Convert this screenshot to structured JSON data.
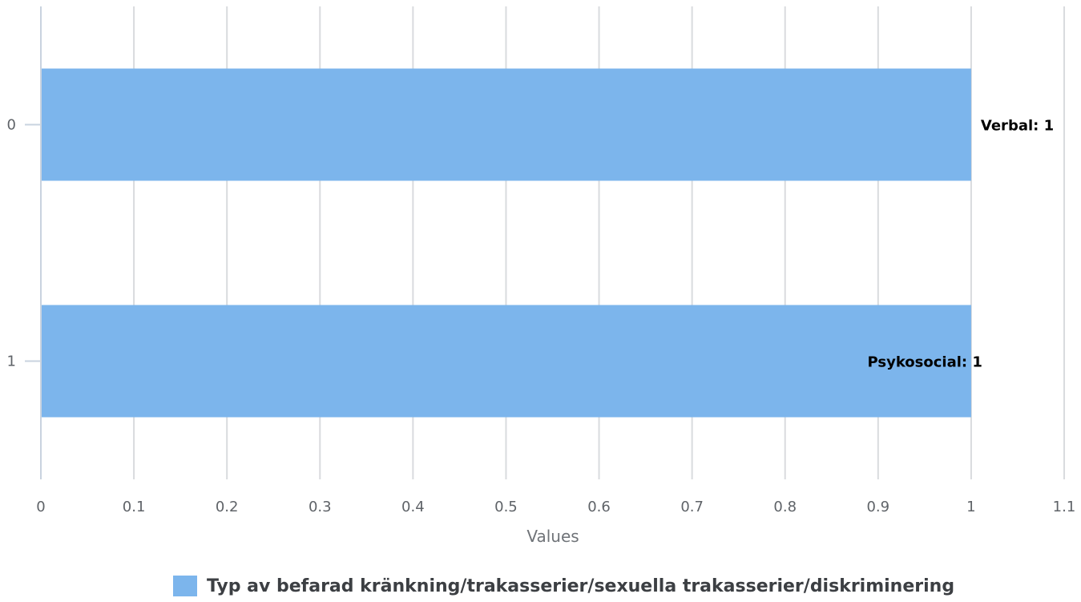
{
  "chart_data": {
    "type": "bar",
    "orientation": "horizontal",
    "categories": [
      "0",
      "1"
    ],
    "series": [
      {
        "name": "Typ av befarad kränkning/trakasserier/sexuella trakasserier/diskriminering",
        "values": [
          1,
          1
        ],
        "color": "#7cb5ec",
        "data_labels": [
          "Verbal: 1",
          "Psykosocial: 1"
        ]
      }
    ],
    "xlabel": "Values",
    "ylabel": "",
    "xlim": [
      0,
      1.1
    ],
    "x_ticks": [
      "0",
      "0.1",
      "0.2",
      "0.3",
      "0.4",
      "0.5",
      "0.6",
      "0.7",
      "0.8",
      "0.9",
      "1",
      "1.1"
    ],
    "grid": true,
    "legend_position": "bottom"
  }
}
